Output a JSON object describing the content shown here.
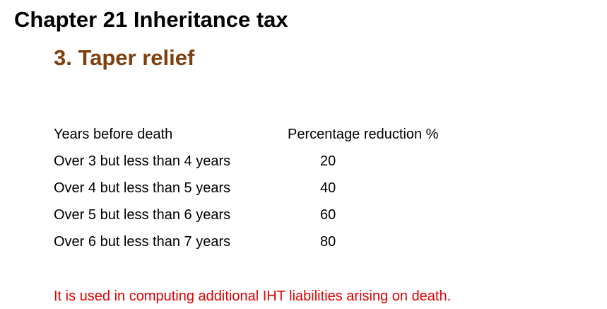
{
  "slide": {
    "chapter_title": "Chapter 21 Inheritance tax",
    "section_title": "3. Taper relief",
    "colors": {
      "section_title": "#7f3f0f",
      "note": "#e30000"
    }
  },
  "table": {
    "header": {
      "years": "Years before death",
      "percentage": "Percentage  reduction %"
    },
    "rows": [
      {
        "years": "Over 3 but less than 4 years",
        "percentage": "20"
      },
      {
        "years": "Over 4 but less than 5 years",
        "percentage": "40"
      },
      {
        "years": "Over 5 but less than 6 years",
        "percentage": "60"
      },
      {
        "years": "Over 6 but less than 7 years",
        "percentage": "80"
      }
    ]
  },
  "note": "It is used in computing additional IHT liabilities arising on death."
}
